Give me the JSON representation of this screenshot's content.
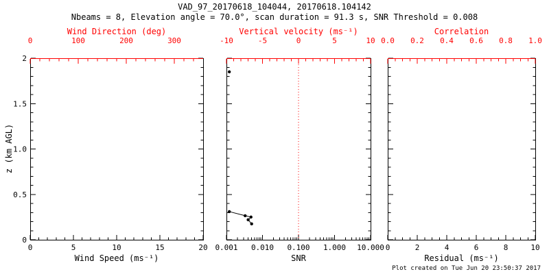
{
  "title": "VAD_97_20170618_104044, 20170618.104142",
  "subtitle": "Nbeams = 8, Elevation angle = 70.0°, scan duration = 91.3 s, SNR Threshold = 0.008",
  "footer": "Plot created on Tue Jun 20 23:50:37 2017",
  "colors": {
    "background": "#ffffff",
    "axis": "#000000",
    "secondary_axis": "#ff0000",
    "data": "#000000",
    "reference_line": "#ff0000"
  },
  "chart_data": [
    {
      "type": "scatter",
      "panel": "wind",
      "x_bottom": {
        "label": "Wind Speed (ms⁻¹)",
        "min": 0,
        "max": 20,
        "ticks": [
          0,
          5,
          10,
          15,
          20
        ],
        "tick_labels": [
          "0",
          "5",
          "10",
          "15",
          "20"
        ],
        "minor_per_major": 5
      },
      "x_top": {
        "label": "Wind Direction (deg)",
        "min": 0,
        "max": 360,
        "ticks": [
          0,
          100,
          200,
          300
        ],
        "tick_labels": [
          "0",
          "100",
          "200",
          "300"
        ],
        "minor_per_major": 5
      },
      "y": {
        "label": "z (km AGL)",
        "min": 0,
        "max": 2,
        "ticks": [
          0,
          0.5,
          1,
          1.5,
          2
        ],
        "tick_labels": [
          "0",
          "0.5",
          "1.0",
          "1.5",
          "2"
        ],
        "minor_per_major": 5
      },
      "series": []
    },
    {
      "type": "scatter",
      "panel": "snr",
      "x_bottom": {
        "label": "SNR",
        "scale": "log",
        "min": 0.001,
        "max": 10,
        "ticks": [
          0.001,
          0.01,
          0.1,
          1,
          10
        ],
        "tick_labels": [
          "0.001",
          "0.010",
          "0.100",
          "1.000",
          "10.000"
        ]
      },
      "x_top": {
        "label": "Vertical velocity (ms⁻¹)",
        "min": -10,
        "max": 10,
        "ticks": [
          -10,
          -5,
          0,
          5,
          10
        ],
        "tick_labels": [
          "-10",
          "-5",
          "0",
          "5",
          "10"
        ],
        "minor_per_major": 5
      },
      "y": {
        "min": 0,
        "max": 2,
        "ticks": [
          0,
          0.5,
          1,
          1.5,
          2
        ],
        "minor_per_major": 5
      },
      "reference_line": {
        "x": 0.1,
        "color": "#ff0000",
        "style": "dotted"
      },
      "series": [
        {
          "name": "snr-profile-upper",
          "type": "scatter",
          "points": [
            [
              0.0012,
              1.85
            ]
          ]
        },
        {
          "name": "snr-profile-lower",
          "type": "line+scatter",
          "points": [
            [
              0.0012,
              0.31
            ],
            [
              0.0033,
              0.265
            ],
            [
              0.0048,
              0.25
            ],
            [
              0.004,
              0.22
            ],
            [
              0.005,
              0.175
            ]
          ]
        }
      ]
    },
    {
      "type": "scatter",
      "panel": "residual",
      "x_bottom": {
        "label": "Residual (ms⁻¹)",
        "min": 0,
        "max": 10,
        "ticks": [
          0,
          2,
          4,
          6,
          8,
          10
        ],
        "tick_labels": [
          "0",
          "2",
          "4",
          "6",
          "8",
          "10"
        ],
        "minor_per_major": 4
      },
      "x_top": {
        "label": "Correlation",
        "min": 0,
        "max": 1,
        "ticks": [
          0,
          0.2,
          0.4,
          0.6,
          0.8,
          1
        ],
        "tick_labels": [
          "0.0",
          "0.2",
          "0.4",
          "0.6",
          "0.8",
          "1.0"
        ],
        "minor_per_major": 4
      },
      "y": {
        "min": 0,
        "max": 2,
        "ticks": [
          0,
          0.5,
          1,
          1.5,
          2
        ],
        "minor_per_major": 5
      },
      "series": []
    }
  ]
}
